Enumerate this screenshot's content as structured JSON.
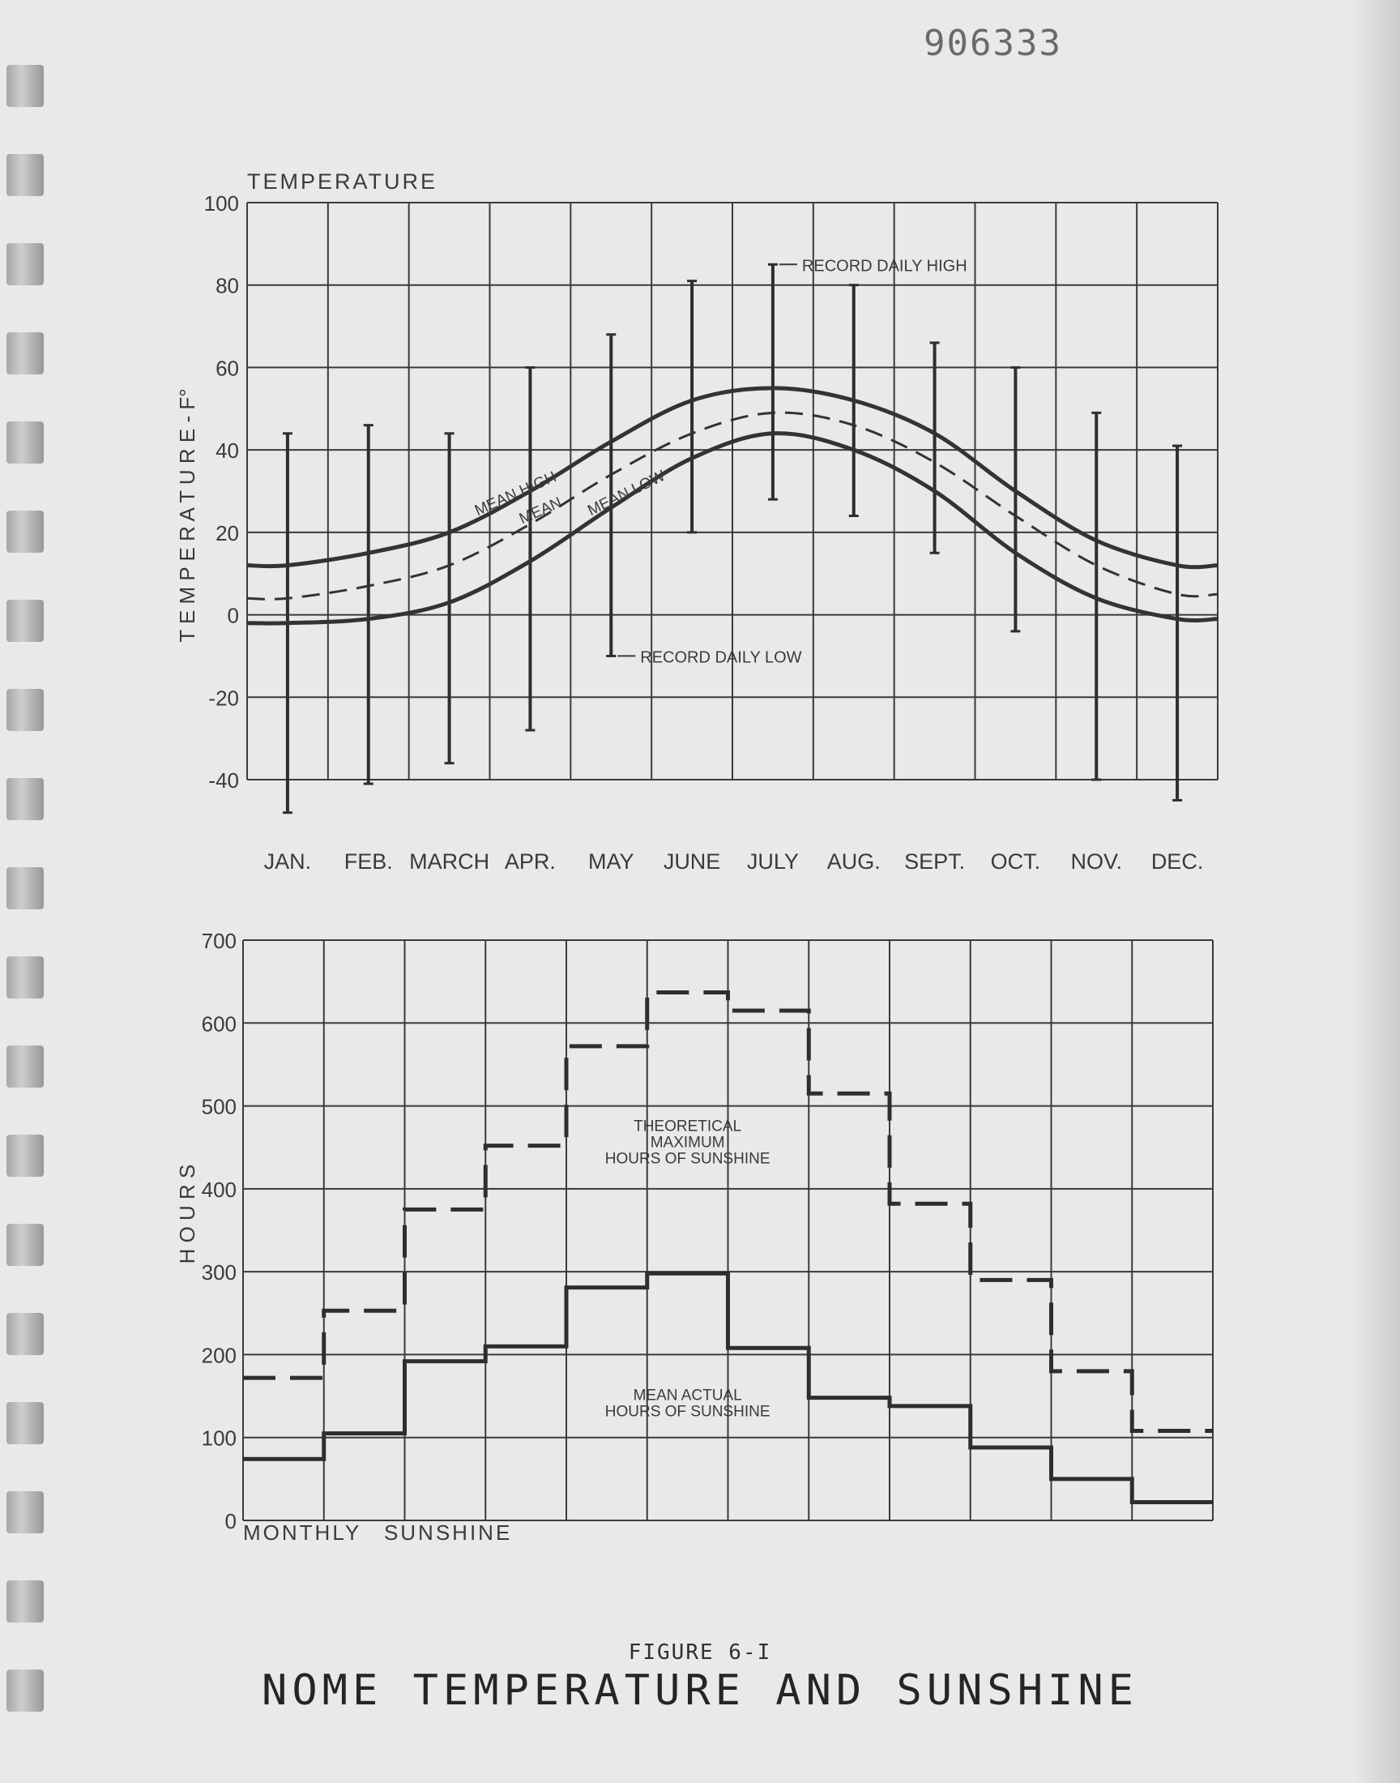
{
  "document_number": "906333",
  "figure": {
    "label": "FIGURE 6-I",
    "title": "NOME TEMPERATURE AND SUNSHINE"
  },
  "chart_data": [
    {
      "type": "line",
      "title": "TEMPERATURE",
      "ylabel": "T E M P E R A T U R E - F°",
      "xlabel": "",
      "ylim": [
        -40,
        100
      ],
      "yticks": [
        -40,
        -20,
        0,
        20,
        40,
        60,
        80,
        100
      ],
      "ytick_labels": [
        "-40",
        "-20",
        "0",
        "20",
        "40",
        "60",
        "80",
        "100"
      ],
      "grid": true,
      "categories": [
        "JAN.",
        "FEB.",
        "MARCH",
        "APR.",
        "MAY",
        "JUNE",
        "JULY",
        "AUG.",
        "SEPT.",
        "OCT.",
        "NOV.",
        "DEC."
      ],
      "x": [
        0.5,
        1.5,
        2.5,
        3.5,
        4.5,
        5.5,
        6.5,
        7.5,
        8.5,
        9.5,
        10.5,
        11.5
      ],
      "series": [
        {
          "name": "MEAN HIGH",
          "values": [
            12,
            15,
            20,
            30,
            42,
            52,
            55,
            52,
            44,
            30,
            18,
            12
          ]
        },
        {
          "name": "MEAN",
          "values": [
            4,
            7,
            12,
            22,
            34,
            44,
            49,
            46,
            37,
            24,
            12,
            5
          ]
        },
        {
          "name": "MEAN LOW",
          "values": [
            -2,
            -1,
            3,
            13,
            26,
            38,
            44,
            40,
            30,
            15,
            4,
            -1
          ]
        }
      ],
      "range_bars": {
        "high_label": "RECORD DAILY HIGH",
        "low_label": "RECORD DAILY LOW",
        "high": [
          44,
          46,
          44,
          60,
          68,
          81,
          85,
          80,
          66,
          60,
          49,
          41
        ],
        "low": [
          -48,
          -41,
          -36,
          -28,
          -10,
          20,
          28,
          24,
          15,
          -4,
          -40,
          -45
        ]
      }
    },
    {
      "type": "line",
      "title": "MONTHLY SUNSHINE",
      "ylabel": "H O U R S",
      "xlabel": "",
      "ylim": [
        0,
        700
      ],
      "yticks": [
        0,
        100,
        200,
        300,
        400,
        500,
        600,
        700
      ],
      "ytick_labels": [
        "0",
        "100",
        "200",
        "300",
        "400",
        "500",
        "600",
        "700"
      ],
      "grid": true,
      "categories": [
        "JAN.",
        "FEB.",
        "MARCH",
        "APR.",
        "MAY",
        "JUNE",
        "JULY",
        "AUG.",
        "SEPT.",
        "OCT.",
        "NOV.",
        "DEC."
      ],
      "series": [
        {
          "name": "THEORETICAL MAXIMUM HOURS OF SUNSHINE",
          "values": [
            172,
            253,
            375,
            452,
            572,
            637,
            615,
            515,
            382,
            290,
            180,
            108
          ]
        },
        {
          "name": "MEAN ACTUAL HOURS OF SUNSHINE",
          "values": [
            74,
            105,
            192,
            210,
            281,
            298,
            208,
            148,
            138,
            88,
            50,
            22
          ]
        }
      ],
      "annotations": [
        {
          "text": [
            "THEORETICAL",
            "MAXIMUM",
            "HOURS OF SUNSHINE"
          ],
          "month": 5.0,
          "value": 470
        },
        {
          "text": [
            "MEAN ACTUAL",
            "HOURS OF SUNSHINE"
          ],
          "month": 5.0,
          "value": 145
        }
      ]
    }
  ]
}
